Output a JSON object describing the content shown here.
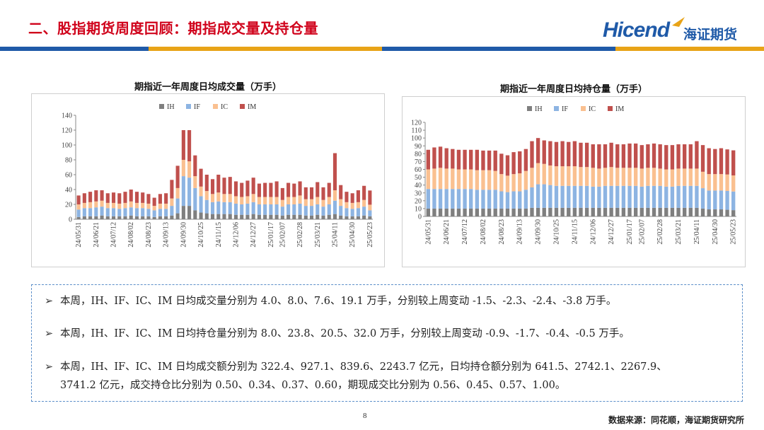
{
  "header": {
    "title": "二、股指期货周度回顾：期指成交量及持仓量",
    "logo_text": "Hicend",
    "logo_cn": "海证期货",
    "band_colors": [
      "#1f5aa8",
      "#e8a317",
      "#1f5aa8",
      "#e8a317"
    ]
  },
  "chart_data": [
    {
      "type": "bar",
      "stacked": true,
      "title": "期指近一年周度日均成交量（万手）",
      "xlabel": "",
      "ylabel": "",
      "ylim": [
        0,
        140
      ],
      "yticks": [
        0,
        20,
        40,
        60,
        80,
        100,
        120,
        140
      ],
      "grid": false,
      "legend": "top",
      "tick_labels": [
        "24/05/31",
        "24/06/21",
        "24/07/12",
        "24/08/02",
        "24/08/23",
        "24/09/13",
        "24/09/30",
        "24/10/25",
        "24/11/15",
        "24/12/06",
        "24/12/27",
        "25/01/17",
        "25/02/07",
        "25/02/28",
        "25/03/21",
        "25/04/11",
        "25/04/30",
        "25/05/23"
      ],
      "categories": [
        "24/05/31",
        "24/06/07",
        "24/06/14",
        "24/06/21",
        "24/06/28",
        "24/07/05",
        "24/07/12",
        "24/07/19",
        "24/07/26",
        "24/08/02",
        "24/08/09",
        "24/08/16",
        "24/08/23",
        "24/08/30",
        "24/09/06",
        "24/09/13",
        "24/09/20",
        "24/09/27",
        "24/09/30",
        "24/10/11",
        "24/10/18",
        "24/10/25",
        "24/11/01",
        "24/11/08",
        "24/11/15",
        "24/11/22",
        "24/11/29",
        "24/12/06",
        "24/12/13",
        "24/12/20",
        "24/12/27",
        "25/01/03",
        "25/01/10",
        "25/01/17",
        "25/01/24",
        "25/02/07",
        "25/02/14",
        "25/02/21",
        "25/02/28",
        "25/03/07",
        "25/03/14",
        "25/03/21",
        "25/03/28",
        "25/04/03",
        "25/04/11",
        "25/04/18",
        "25/04/25",
        "25/04/30",
        "25/05/09",
        "25/05/16",
        "25/05/23"
      ],
      "series": [
        {
          "name": "IH",
          "color": "#7f7f7f",
          "values": [
            3,
            4,
            4,
            4,
            5,
            4,
            4,
            4,
            4,
            5,
            4,
            4,
            4,
            3,
            4,
            4,
            5,
            8,
            18,
            18,
            12,
            9,
            8,
            7,
            7,
            7,
            7,
            6,
            6,
            6,
            7,
            6,
            6,
            6,
            6,
            5,
            6,
            6,
            6,
            5,
            5,
            6,
            5,
            6,
            7,
            5,
            4,
            4,
            4,
            5,
            4
          ]
        },
        {
          "name": "IF",
          "color": "#8db4e2",
          "values": [
            10,
            11,
            11,
            12,
            12,
            11,
            11,
            10,
            11,
            11,
            11,
            11,
            10,
            9,
            10,
            10,
            13,
            20,
            40,
            38,
            30,
            22,
            18,
            16,
            17,
            16,
            16,
            15,
            14,
            15,
            16,
            14,
            14,
            14,
            14,
            12,
            14,
            14,
            15,
            13,
            13,
            14,
            12,
            14,
            18,
            13,
            11,
            10,
            11,
            12,
            8
          ]
        },
        {
          "name": "IC",
          "color": "#fac090",
          "values": [
            7,
            7,
            8,
            8,
            8,
            7,
            7,
            7,
            7,
            8,
            7,
            7,
            7,
            6,
            7,
            7,
            10,
            14,
            22,
            22,
            16,
            13,
            12,
            11,
            12,
            11,
            11,
            10,
            10,
            10,
            11,
            10,
            10,
            10,
            10,
            9,
            10,
            10,
            11,
            9,
            9,
            10,
            9,
            10,
            14,
            9,
            8,
            8,
            8,
            9,
            7.6
          ]
        },
        {
          "name": "IM",
          "color": "#c0504d",
          "values": [
            12,
            13,
            14,
            15,
            14,
            13,
            14,
            14,
            15,
            16,
            15,
            14,
            13,
            11,
            13,
            14,
            25,
            30,
            40,
            42,
            28,
            24,
            22,
            20,
            24,
            22,
            23,
            20,
            19,
            21,
            22,
            18,
            19,
            19,
            21,
            16,
            19,
            18,
            19,
            16,
            16,
            20,
            17,
            19,
            50,
            19,
            14,
            13,
            16,
            19,
            19.1
          ]
        }
      ]
    },
    {
      "type": "bar",
      "stacked": true,
      "title": "期指近一年周度日均持仓量（万手）",
      "xlabel": "",
      "ylabel": "",
      "ylim": [
        0,
        120
      ],
      "yticks": [
        0,
        10,
        20,
        30,
        40,
        50,
        60,
        70,
        80,
        90,
        100,
        110,
        120
      ],
      "grid": false,
      "legend": "top",
      "tick_labels": [
        "24/05/31",
        "24/06/21",
        "24/07/12",
        "24/08/02",
        "24/08/23",
        "24/09/13",
        "24/09/30",
        "24/10/25",
        "24/11/15",
        "24/12/06",
        "24/12/27",
        "25/01/17",
        "25/02/07",
        "25/02/28",
        "25/03/21",
        "25/04/11",
        "25/04/30",
        "25/05/23"
      ],
      "categories": [
        "24/05/31",
        "24/06/07",
        "24/06/14",
        "24/06/21",
        "24/06/28",
        "24/07/05",
        "24/07/12",
        "24/07/19",
        "24/07/26",
        "24/08/02",
        "24/08/09",
        "24/08/16",
        "24/08/23",
        "24/08/30",
        "24/09/06",
        "24/09/13",
        "24/09/20",
        "24/09/27",
        "24/09/30",
        "24/10/11",
        "24/10/18",
        "24/10/25",
        "24/11/01",
        "24/11/08",
        "24/11/15",
        "24/11/22",
        "24/11/29",
        "24/12/06",
        "24/12/13",
        "24/12/20",
        "24/12/27",
        "25/01/03",
        "25/01/10",
        "25/01/17",
        "25/01/24",
        "25/02/07",
        "25/02/14",
        "25/02/21",
        "25/02/28",
        "25/03/07",
        "25/03/14",
        "25/03/21",
        "25/03/28",
        "25/04/03",
        "25/04/11",
        "25/04/18",
        "25/04/25",
        "25/04/30",
        "25/05/09",
        "25/05/16",
        "25/05/23"
      ],
      "series": [
        {
          "name": "IH",
          "color": "#7f7f7f",
          "values": [
            10,
            10,
            10,
            10,
            10,
            10,
            10,
            10,
            10,
            10,
            10,
            10,
            10,
            10,
            10,
            10,
            10,
            11,
            11,
            11,
            11,
            11,
            11,
            11,
            11,
            11,
            11,
            11,
            11,
            11,
            11,
            11,
            11,
            11,
            11,
            11,
            11,
            11,
            11,
            11,
            11,
            11,
            11,
            11,
            11,
            10,
            9,
            9,
            9,
            8.5,
            8
          ]
        },
        {
          "name": "IF",
          "color": "#8db4e2",
          "values": [
            25,
            25,
            25,
            25,
            25,
            25,
            25,
            25,
            24,
            24,
            24,
            24,
            22,
            21,
            22,
            22,
            24,
            26,
            30,
            30,
            29,
            28,
            28,
            28,
            28,
            28,
            28,
            27,
            27,
            28,
            28,
            28,
            28,
            28,
            28,
            27,
            28,
            28,
            28,
            27,
            27,
            28,
            28,
            28,
            28,
            26,
            24,
            24,
            24,
            24,
            23.8
          ]
        },
        {
          "name": "IC",
          "color": "#fac090",
          "values": [
            25,
            26,
            27,
            26,
            26,
            25,
            25,
            25,
            25,
            25,
            25,
            24,
            22,
            21,
            22,
            23,
            24,
            25,
            27,
            26,
            25,
            25,
            25,
            25,
            25,
            24,
            24,
            24,
            23,
            23,
            24,
            23,
            23,
            23,
            23,
            23,
            23,
            23,
            22,
            22,
            22,
            22,
            22,
            22,
            22,
            21,
            21,
            21,
            21,
            21,
            20.5
          ]
        },
        {
          "name": "IM",
          "color": "#c0504d",
          "values": [
            25,
            27,
            27,
            26,
            25,
            25,
            25,
            25,
            26,
            25,
            25,
            26,
            26,
            26,
            28,
            28,
            28,
            34,
            32,
            30,
            31,
            31,
            32,
            31,
            32,
            31,
            31,
            30,
            31,
            30,
            31,
            30,
            30,
            31,
            31,
            30,
            30,
            31,
            31,
            31,
            31,
            31,
            31,
            31,
            35,
            34,
            33,
            32,
            33,
            32,
            32
          ]
        }
      ]
    }
  ],
  "notes": [
    {
      "text": "本周，IH、IF、IC、IM 日均成交量分别为 4.0、8.0、7.6、19.1 万手，分别较上周变动 -1.5、-2.3、-2.4、-3.8 万手。"
    },
    {
      "text": "本周，IH、IF、IC、IM 日均持仓量分别为 8.0、23.8、20.5、32.0 万手，分别较上周变动 -0.9、-1.7、-0.4、-0.5 万手。"
    },
    {
      "text": "本周，IH、IF、IC、IM 日均成交额分别为 322.4、927.1、839.6、2243.7 亿元，日均持仓额分别为 641.5、2742.1、2267.9、",
      "text_cont": "3741.2 亿元，成交持仓比分别为 0.50、0.34、0.37、0.60，期现成交比分别为 0.56、0.45、0.57、1.00。"
    }
  ],
  "footer": {
    "page": "8",
    "source": "数据来源：同花顺，海证期货研究所"
  }
}
